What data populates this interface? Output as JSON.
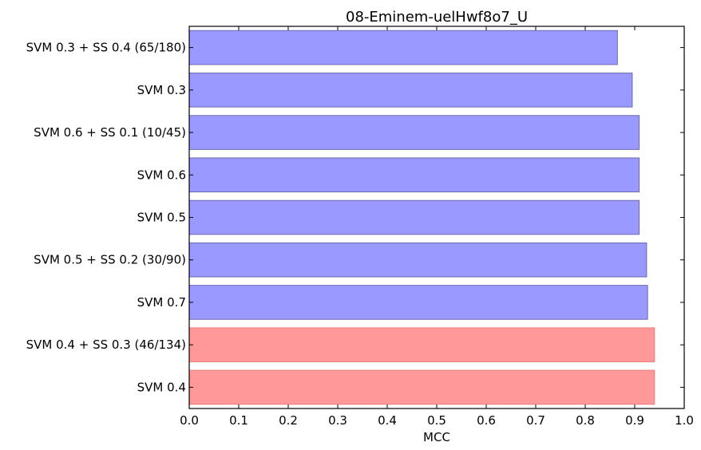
{
  "chart_data": {
    "type": "bar",
    "orientation": "horizontal",
    "title": "08-Eminem-uelHwf8o7_U",
    "xlabel": "MCC",
    "ylabel": "",
    "xlim": [
      0.0,
      1.0
    ],
    "xticks": [
      "0.0",
      "0.1",
      "0.2",
      "0.3",
      "0.4",
      "0.5",
      "0.6",
      "0.7",
      "0.8",
      "0.9",
      "1.0"
    ],
    "grid": false,
    "categories": [
      "SVM 0.3 + SS 0.4 (65/180)",
      "SVM 0.3",
      "SVM 0.6 + SS 0.1 (10/45)",
      "SVM 0.6",
      "SVM 0.5",
      "SVM 0.5 + SS 0.2 (30/90)",
      "SVM 0.7",
      "SVM 0.4 + SS 0.3 (46/134)",
      "SVM 0.4"
    ],
    "values": [
      0.865,
      0.895,
      0.909,
      0.909,
      0.909,
      0.924,
      0.926,
      0.94,
      0.94
    ],
    "highlighted": [
      false,
      false,
      false,
      false,
      false,
      false,
      false,
      true,
      true
    ],
    "colors": {
      "bar": "#9999ff",
      "bar_edge": "#6a6ab0",
      "highlight": "#ff9999",
      "highlight_edge": "#e87b7b",
      "axis": "#000000"
    }
  }
}
